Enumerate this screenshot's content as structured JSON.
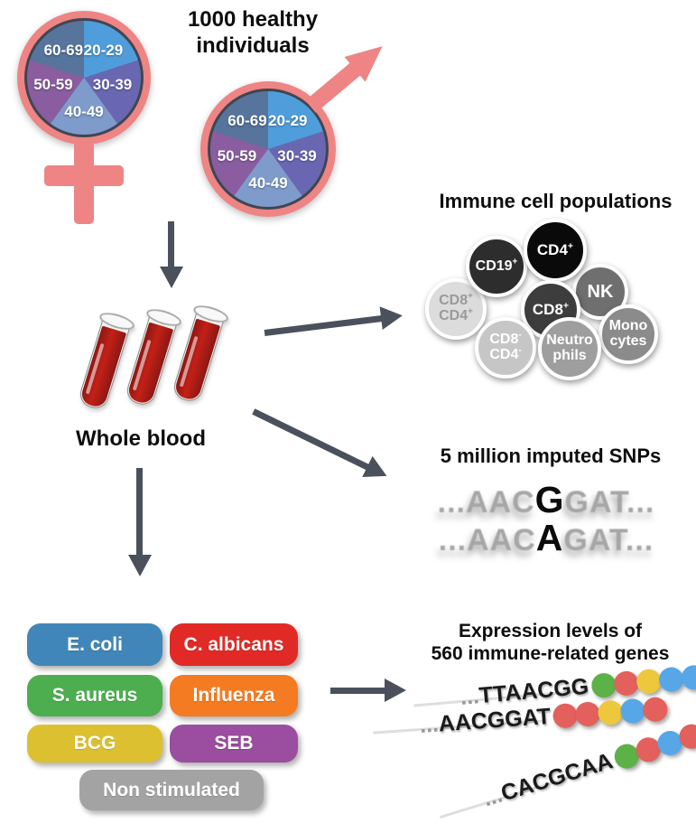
{
  "population": {
    "title": "1000 healthy individuals",
    "symbol_color": "#ee8484",
    "age_groups": [
      {
        "label": "20-29",
        "color": "#4f9edb"
      },
      {
        "label": "30-39",
        "color": "#6a67b2"
      },
      {
        "label": "40-49",
        "color": "#7e9bcb"
      },
      {
        "label": "50-59",
        "color": "#8a5da0"
      },
      {
        "label": "60-69",
        "color": "#56749c"
      }
    ]
  },
  "whole_blood": {
    "label": "Whole blood",
    "blood_color": "#b2201b"
  },
  "arrow_color": "#4a515c",
  "immune_cells": {
    "title": "Immune cell populations",
    "cells": [
      {
        "line1": "CD8",
        "sup1": "+",
        "line2": "CD4",
        "sup2": "+",
        "bg": "#dcdcdc",
        "fg": "#9a9a9a"
      },
      {
        "line1": "NK",
        "bg": "#6f6f6f",
        "fg": "#ffffff"
      },
      {
        "line1": "CD19",
        "sup1": "+",
        "bg": "#2d2d2d",
        "fg": "#ffffff"
      },
      {
        "line1": "CD4",
        "sup1": "+",
        "bg": "#0a0a0a",
        "fg": "#ffffff"
      },
      {
        "line1": "CD8",
        "sup1": "+",
        "bg": "#3d3d3d",
        "fg": "#ffffff"
      },
      {
        "line1": "Mono",
        "line2": "cytes",
        "bg": "#8b8b8b",
        "fg": "#ffffff"
      },
      {
        "line1": "CD8",
        "sup1": "-",
        "line2": "CD4",
        "sup2": "-",
        "bg": "#c6c6c6",
        "fg": "#ffffff"
      },
      {
        "line1": "Neutro",
        "line2": "phils",
        "bg": "#9e9e9e",
        "fg": "#ffffff"
      }
    ]
  },
  "snps": {
    "title": "5 million imputed SNPs",
    "base_color": "#a6a6a6",
    "sequences": [
      {
        "pre": "...AAC",
        "variant": "G",
        "post": "GAT..."
      },
      {
        "pre": "...AAC",
        "variant": "A",
        "post": "GAT..."
      }
    ]
  },
  "stimuli": {
    "items": [
      {
        "label": "E. coli",
        "color": "#4186b8"
      },
      {
        "label": "C. albicans",
        "color": "#e12a26"
      },
      {
        "label": "S. aureus",
        "color": "#4cae4f"
      },
      {
        "label": "Influenza",
        "color": "#f47b21"
      },
      {
        "label": "BCG",
        "color": "#ddc02f"
      },
      {
        "label": "SEB",
        "color": "#9b4d9f"
      },
      {
        "label": "Non stimulated",
        "color": "#a3a3a3"
      }
    ]
  },
  "expression": {
    "title_line1": "Expression levels of",
    "title_line2": "560 immune-related genes",
    "dot_colors": {
      "green": "#5cb246",
      "red": "#e4605c",
      "yellow": "#edc83d",
      "blue": "#57a7e8"
    },
    "genes": [
      {
        "prefix": "...",
        "sequence": "TTAACGG",
        "dots": [
          "green",
          "red",
          "yellow",
          "blue",
          "blue"
        ]
      },
      {
        "prefix": "...",
        "sequence": "AACGGAT",
        "dots": [
          "red",
          "red",
          "yellow",
          "blue",
          "red"
        ]
      },
      {
        "prefix": "...",
        "sequence": "CACGCAA",
        "dots": [
          "green",
          "red",
          "blue",
          "red",
          "red"
        ]
      }
    ]
  }
}
